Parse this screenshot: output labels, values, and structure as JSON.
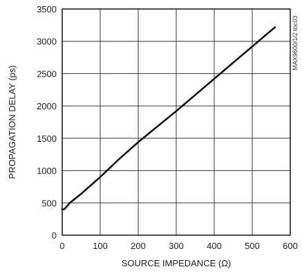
{
  "chart_data": {
    "type": "line",
    "title": "",
    "xlabel": "SOURCE IMPEDANCE (Ω)",
    "ylabel": "PROPAGATION DELAY (ps)",
    "xlim": [
      0,
      600
    ],
    "ylim": [
      0,
      3500
    ],
    "x_ticks": [
      "0",
      "100",
      "200",
      "300",
      "400",
      "500",
      "600"
    ],
    "y_ticks": [
      "0",
      "500",
      "1000",
      "1500",
      "2000",
      "2500",
      "3000",
      "3500"
    ],
    "grid": true,
    "figure_code": "MAX9600/1/2 toc03",
    "series": [
      {
        "x": [
          0,
          5,
          10,
          20,
          50,
          100,
          150,
          200,
          250,
          300,
          350,
          400,
          450,
          500,
          560
        ],
        "y": [
          400,
          400,
          430,
          500,
          640,
          900,
          1180,
          1440,
          1680,
          1920,
          2170,
          2420,
          2670,
          2920,
          3220
        ]
      }
    ]
  }
}
